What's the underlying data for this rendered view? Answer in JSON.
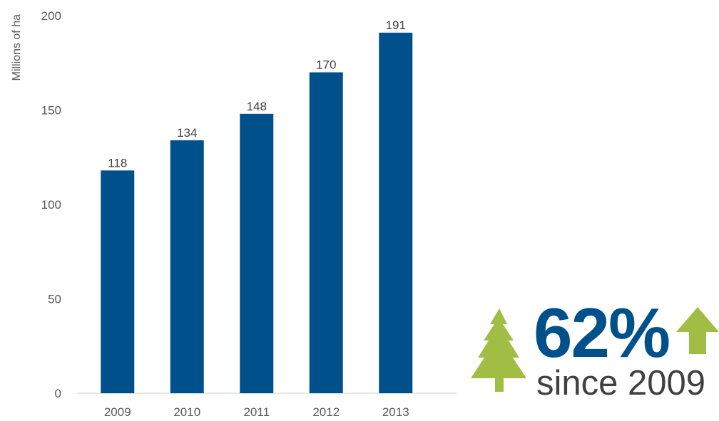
{
  "chart_data": {
    "type": "bar",
    "categories": [
      "2009",
      "2010",
      "2011",
      "2012",
      "2013"
    ],
    "values": [
      118,
      134,
      148,
      170,
      191
    ],
    "data_labels": [
      "118",
      "134",
      "148",
      "170",
      "191"
    ],
    "title": "",
    "xlabel": "",
    "ylabel": "Millions of ha",
    "ylim": [
      0,
      200
    ],
    "yticks": [
      "0",
      "50",
      "100",
      "150",
      "200"
    ],
    "grid": false,
    "bar_color": "#00508C"
  },
  "callout": {
    "percent": "62%",
    "subtitle": "since 2009",
    "percent_color": "#00508C",
    "subtitle_color": "#404040",
    "icon_color": "#A2BD43",
    "tree_icon": "tree-icon",
    "arrow_icon": "up-arrow-icon"
  }
}
